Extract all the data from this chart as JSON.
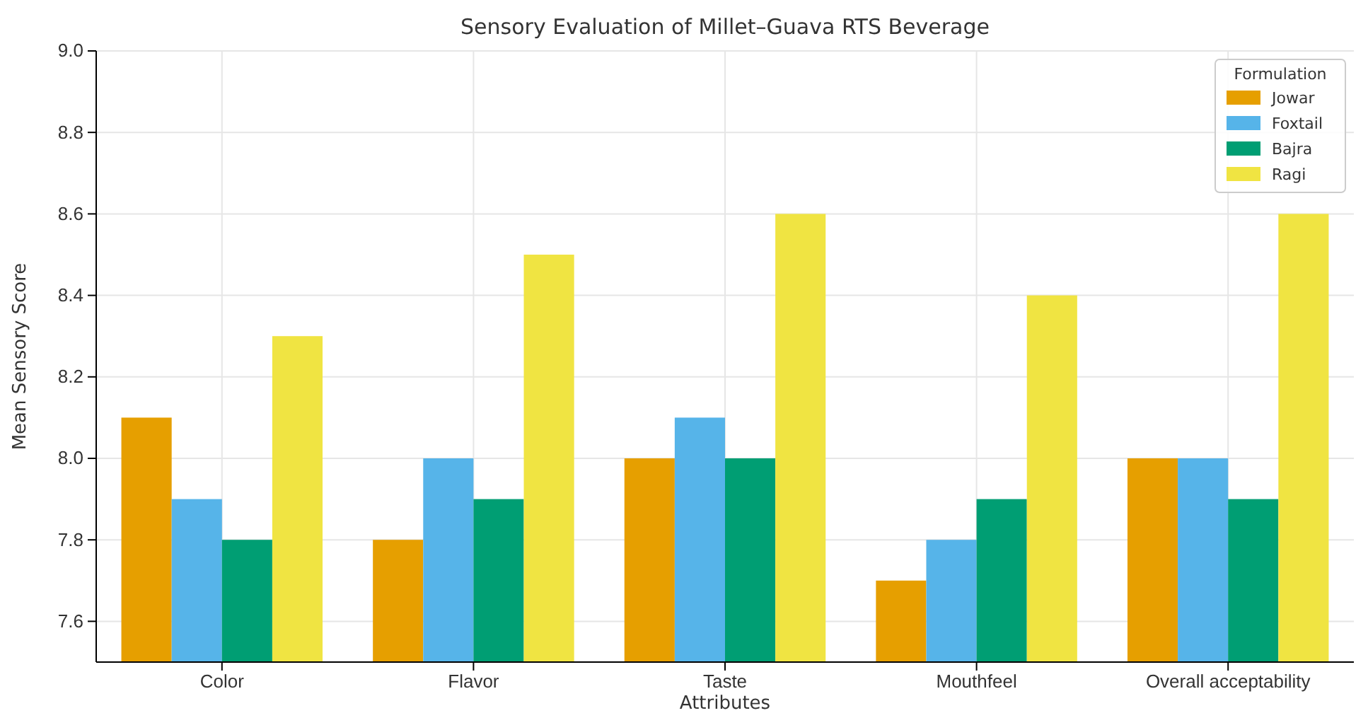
{
  "chart_data": {
    "type": "bar",
    "title": "Sensory Evaluation of Millet–Guava RTS Beverage",
    "xlabel": "Attributes",
    "ylabel": "Mean Sensory Score",
    "categories": [
      "Color",
      "Flavor",
      "Taste",
      "Mouthfeel",
      "Overall acceptability"
    ],
    "series": [
      {
        "name": "Jowar",
        "color": "#e69f00",
        "values": [
          8.1,
          7.8,
          8.0,
          7.7,
          8.0
        ]
      },
      {
        "name": "Foxtail",
        "color": "#56b4e9",
        "values": [
          7.9,
          8.0,
          8.1,
          7.8,
          8.0
        ]
      },
      {
        "name": "Bajra",
        "color": "#009e73",
        "values": [
          7.8,
          7.9,
          8.0,
          7.9,
          7.9
        ]
      },
      {
        "name": "Ragi",
        "color": "#f0e442",
        "values": [
          8.3,
          8.5,
          8.6,
          8.4,
          8.6
        ]
      }
    ],
    "ylim": [
      7.5,
      9.0
    ],
    "yticks": [
      7.6,
      7.8,
      {
        "value": 8.0,
        "label": "8.0"
      },
      8.2,
      8.4,
      8.6,
      8.8,
      {
        "value": 9.0,
        "label": "9.0"
      }
    ],
    "grid": true,
    "legend": "top right",
    "legend_title": "Formulation"
  }
}
